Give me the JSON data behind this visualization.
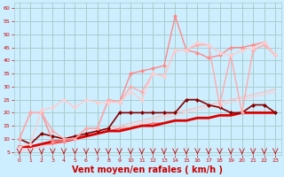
{
  "background_color": "#cceeff",
  "grid_color": "#aacccc",
  "xlabel": "Vent moyen/en rafales ( km/h )",
  "xlabel_color": "#cc0000",
  "xlabel_fontsize": 7,
  "ytick_color": "#cc0000",
  "xtick_color": "#cc0000",
  "ylim": [
    4,
    62
  ],
  "xlim": [
    -0.5,
    23.5
  ],
  "yticks": [
    5,
    10,
    15,
    20,
    25,
    30,
    35,
    40,
    45,
    50,
    55,
    60
  ],
  "xticks": [
    0,
    1,
    2,
    3,
    4,
    5,
    6,
    7,
    8,
    9,
    10,
    11,
    12,
    13,
    14,
    15,
    16,
    17,
    18,
    19,
    20,
    21,
    22,
    23
  ],
  "lines": [
    {
      "x": [
        0,
        1,
        2,
        3,
        4,
        5,
        6,
        7,
        8,
        9,
        10,
        11,
        12,
        13,
        14,
        15,
        16,
        17,
        18,
        19,
        20,
        21,
        22,
        23
      ],
      "y": [
        6,
        7,
        8,
        9,
        10,
        11,
        12,
        13,
        14,
        15,
        16,
        17,
        18,
        19,
        20,
        21,
        22,
        23,
        24,
        25,
        26,
        27,
        28,
        29
      ],
      "color": "#ffbbbb",
      "linewidth": 0.8,
      "marker": null
    },
    {
      "x": [
        0,
        1,
        2,
        3,
        4,
        5,
        6,
        7,
        8,
        9,
        10,
        11,
        12,
        13,
        14,
        15,
        16,
        17,
        18,
        19,
        20,
        21,
        22,
        23
      ],
      "y": [
        5,
        6,
        7,
        8,
        9,
        10,
        11,
        12,
        13,
        14,
        15,
        16,
        17,
        18,
        19,
        20,
        21,
        22,
        23,
        24,
        25,
        26,
        27,
        28
      ],
      "color": "#ffcccc",
      "linewidth": 0.8,
      "marker": null
    },
    {
      "x": [
        0,
        1,
        2,
        3,
        4,
        5,
        6,
        7,
        8,
        9,
        10,
        11,
        12,
        13,
        14,
        15,
        16,
        17,
        18,
        19,
        20,
        21,
        22,
        23
      ],
      "y": [
        7,
        7,
        8,
        8,
        9,
        10,
        11,
        12,
        13,
        14,
        14,
        15,
        16,
        16,
        17,
        17,
        18,
        18,
        19,
        19,
        20,
        20,
        20,
        20
      ],
      "color": "#ff6666",
      "linewidth": 1.0,
      "marker": null
    },
    {
      "x": [
        0,
        1,
        2,
        3,
        4,
        5,
        6,
        7,
        8,
        9,
        10,
        11,
        12,
        13,
        14,
        15,
        16,
        17,
        18,
        19,
        20,
        21,
        22,
        23
      ],
      "y": [
        7,
        7,
        8,
        9,
        9,
        10,
        11,
        12,
        13,
        13,
        14,
        15,
        15,
        16,
        17,
        17,
        18,
        18,
        19,
        19,
        20,
        20,
        20,
        20
      ],
      "color": "#dd0000",
      "linewidth": 2.0,
      "marker": null
    },
    {
      "x": [
        0,
        1,
        2,
        3,
        4,
        5,
        6,
        7,
        8,
        9,
        10,
        11,
        12,
        13,
        14,
        15,
        16,
        17,
        18,
        19,
        20,
        21,
        22,
        23
      ],
      "y": [
        10,
        8,
        12,
        11,
        10,
        11,
        12,
        13,
        14,
        20,
        20,
        20,
        20,
        20,
        20,
        25,
        25,
        23,
        22,
        20,
        20,
        23,
        23,
        20
      ],
      "color": "#880000",
      "linewidth": 1.2,
      "marker": "D",
      "markersize": 2.0
    },
    {
      "x": [
        0,
        1,
        2,
        3,
        4,
        5,
        6,
        7,
        8,
        9,
        10,
        11,
        12,
        13,
        14,
        15,
        16,
        17,
        18,
        19,
        20,
        21,
        22,
        23
      ],
      "y": [
        10,
        20,
        20,
        9,
        9,
        10,
        14,
        14,
        25,
        24,
        35,
        36,
        37,
        38,
        57,
        44,
        43,
        41,
        42,
        45,
        45,
        46,
        47,
        42
      ],
      "color": "#ff8888",
      "linewidth": 1.0,
      "marker": "D",
      "markersize": 2.0
    },
    {
      "x": [
        0,
        1,
        2,
        3,
        4,
        5,
        6,
        7,
        8,
        9,
        10,
        11,
        12,
        13,
        14,
        15,
        16,
        17,
        18,
        19,
        20,
        21,
        22,
        23
      ],
      "y": [
        10,
        20,
        20,
        13,
        10,
        10,
        14,
        14,
        25,
        24,
        30,
        28,
        35,
        34,
        44,
        44,
        46,
        46,
        23,
        42,
        20,
        44,
        46,
        42
      ],
      "color": "#ffaaaa",
      "linewidth": 1.0,
      "marker": "D",
      "markersize": 2.0
    },
    {
      "x": [
        0,
        1,
        2,
        3,
        4,
        5,
        6,
        7,
        8,
        9,
        10,
        11,
        12,
        13,
        14,
        15,
        16,
        17,
        18,
        19,
        20,
        21,
        22,
        23
      ],
      "y": [
        7,
        8,
        21,
        22,
        25,
        22,
        25,
        24,
        24,
        24,
        28,
        25,
        35,
        34,
        44,
        44,
        47,
        46,
        43,
        42,
        44,
        45,
        47,
        42
      ],
      "color": "#ffcccc",
      "linewidth": 1.0,
      "marker": "D",
      "markersize": 2.0
    }
  ]
}
